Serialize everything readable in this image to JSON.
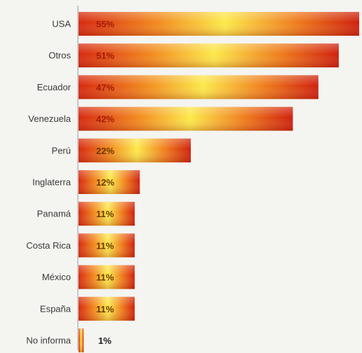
{
  "chart_data": {
    "type": "bar",
    "orientation": "horizontal",
    "categories": [
      "USA",
      "Otros",
      "Ecuador",
      "Venezuela",
      "Perú",
      "Inglaterra",
      "Panamá",
      "Costa Rica",
      "México",
      "España",
      "No informa"
    ],
    "values": [
      55,
      51,
      47,
      42,
      22,
      12,
      11,
      11,
      11,
      11,
      1
    ],
    "value_labels": [
      "55%",
      "51%",
      "47%",
      "42%",
      "22%",
      "12%",
      "11%",
      "11%",
      "11%",
      "11%",
      "1%"
    ],
    "xlim": [
      0,
      55
    ],
    "grid": false,
    "legend": "none",
    "colors": {
      "bar_edge": "#d4200f",
      "bar_mid": "#f7d53a",
      "bar_light": "#fff07a",
      "axis": "#b8b8b8",
      "label_dark": "#a51c0a",
      "label_light": "#6a3a00"
    }
  }
}
